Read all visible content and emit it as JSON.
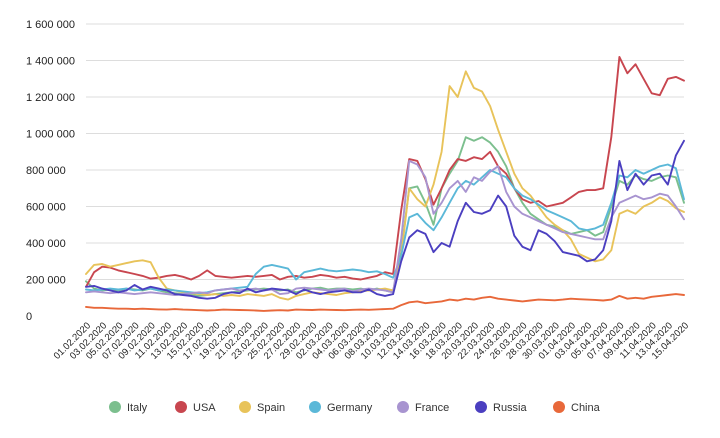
{
  "chart_data": {
    "type": "line",
    "title": "",
    "xlabel": "",
    "ylabel": "",
    "ylim": [
      0,
      1600000
    ],
    "yticks": [
      0,
      200000,
      400000,
      600000,
      800000,
      1000000,
      1200000,
      1400000,
      1600000
    ],
    "ytick_labels": [
      "0",
      "200 000",
      "400 000",
      "600 000",
      "800 000",
      "1 000 000",
      "1 200 000",
      "1 400 000",
      "1 600 000"
    ],
    "grid": true,
    "legend_position": "bottom",
    "x_tick_labels": [
      "01.02.2020",
      "03.02.2020",
      "05.02.2020",
      "07.02.2020",
      "09.02.2020",
      "11.02.2020",
      "13.02.2020",
      "15.02.2020",
      "17.02.2020",
      "19.02.2020",
      "21.02.2020",
      "23.02.2020",
      "25.02.2020",
      "27.02.2020",
      "29.02.2020",
      "02.03.2020",
      "04.03.2020",
      "06.03.2020",
      "08.03.2020",
      "10.03.2020",
      "12.03.2020",
      "14.03.2020",
      "16.03.2020",
      "18.03.2020",
      "20.03.2020",
      "22.03.2020",
      "24.03.2020",
      "26.03.2020",
      "28.03.2020",
      "30.03.2020",
      "01.04.2020",
      "03.04.2020",
      "05.04.2020",
      "07.04.2020",
      "09.04.2020",
      "11.04.2020",
      "13.04.2020",
      "15.04.2020"
    ],
    "x": [
      "01.02.2020",
      "02.02.2020",
      "03.02.2020",
      "04.02.2020",
      "05.02.2020",
      "06.02.2020",
      "07.02.2020",
      "08.02.2020",
      "09.02.2020",
      "10.02.2020",
      "11.02.2020",
      "12.02.2020",
      "13.02.2020",
      "14.02.2020",
      "15.02.2020",
      "16.02.2020",
      "17.02.2020",
      "18.02.2020",
      "19.02.2020",
      "20.02.2020",
      "21.02.2020",
      "22.02.2020",
      "23.02.2020",
      "24.02.2020",
      "25.02.2020",
      "26.02.2020",
      "27.02.2020",
      "28.02.2020",
      "29.02.2020",
      "01.03.2020",
      "02.03.2020",
      "03.03.2020",
      "04.03.2020",
      "05.03.2020",
      "06.03.2020",
      "07.03.2020",
      "08.03.2020",
      "09.03.2020",
      "10.03.2020",
      "11.03.2020",
      "12.03.2020",
      "13.03.2020",
      "14.03.2020",
      "15.03.2020",
      "16.03.2020",
      "17.03.2020",
      "18.03.2020",
      "19.03.2020",
      "20.03.2020",
      "21.03.2020",
      "22.03.2020",
      "23.03.2020",
      "24.03.2020",
      "25.03.2020",
      "26.03.2020",
      "27.03.2020",
      "28.03.2020",
      "29.03.2020",
      "30.03.2020",
      "31.03.2020",
      "01.04.2020",
      "02.04.2020",
      "03.04.2020",
      "04.04.2020",
      "05.04.2020",
      "06.04.2020",
      "07.04.2020",
      "08.04.2020",
      "09.04.2020",
      "10.04.2020",
      "11.04.2020",
      "12.04.2020",
      "13.04.2020",
      "14.04.2020",
      "15.04.2020"
    ],
    "series": [
      {
        "name": "Italy",
        "color": "#7cbf8e",
        "values": [
          190000,
          150000,
          140000,
          145000,
          140000,
          150000,
          145000,
          140000,
          150000,
          140000,
          130000,
          125000,
          120000,
          115000,
          110000,
          115000,
          120000,
          125000,
          130000,
          135000,
          140000,
          145000,
          150000,
          145000,
          140000,
          145000,
          130000,
          140000,
          150000,
          155000,
          145000,
          150000,
          150000,
          145000,
          150000,
          140000,
          150000,
          140000,
          130000,
          350000,
          700000,
          710000,
          620000,
          500000,
          700000,
          780000,
          850000,
          980000,
          960000,
          980000,
          950000,
          900000,
          820000,
          700000,
          620000,
          560000,
          530000,
          500000,
          490000,
          470000,
          450000,
          460000,
          470000,
          440000,
          460000,
          600000,
          740000,
          720000,
          770000,
          750000,
          740000,
          760000,
          770000,
          760000,
          620000
        ]
      },
      {
        "name": "USA",
        "color": "#c8464f",
        "values": [
          160000,
          240000,
          270000,
          265000,
          250000,
          240000,
          230000,
          220000,
          205000,
          210000,
          220000,
          225000,
          215000,
          200000,
          220000,
          250000,
          220000,
          215000,
          210000,
          215000,
          220000,
          215000,
          220000,
          225000,
          200000,
          215000,
          220000,
          210000,
          215000,
          225000,
          220000,
          210000,
          215000,
          205000,
          200000,
          210000,
          220000,
          240000,
          230000,
          580000,
          860000,
          850000,
          750000,
          610000,
          700000,
          800000,
          860000,
          850000,
          870000,
          860000,
          900000,
          820000,
          780000,
          700000,
          640000,
          620000,
          630000,
          600000,
          610000,
          620000,
          650000,
          680000,
          690000,
          690000,
          700000,
          980000,
          1420000,
          1330000,
          1380000,
          1300000,
          1220000,
          1210000,
          1300000,
          1310000,
          1290000
        ]
      },
      {
        "name": "Spain",
        "color": "#e8c35a",
        "values": [
          230000,
          280000,
          285000,
          270000,
          280000,
          290000,
          300000,
          305000,
          295000,
          210000,
          150000,
          140000,
          130000,
          125000,
          120000,
          115000,
          120000,
          110000,
          115000,
          110000,
          120000,
          115000,
          110000,
          120000,
          100000,
          90000,
          110000,
          120000,
          130000,
          125000,
          120000,
          115000,
          125000,
          130000,
          135000,
          140000,
          145000,
          150000,
          140000,
          330000,
          700000,
          640000,
          600000,
          720000,
          900000,
          1260000,
          1200000,
          1340000,
          1250000,
          1230000,
          1150000,
          1020000,
          900000,
          780000,
          700000,
          660000,
          600000,
          540000,
          500000,
          470000,
          420000,
          340000,
          320000,
          300000,
          310000,
          360000,
          560000,
          580000,
          560000,
          600000,
          620000,
          650000,
          630000,
          590000,
          570000
        ]
      },
      {
        "name": "Germany",
        "color": "#5bb8d8",
        "values": [
          145000,
          140000,
          145000,
          150000,
          145000,
          150000,
          140000,
          145000,
          150000,
          140000,
          145000,
          140000,
          135000,
          130000,
          125000,
          130000,
          140000,
          145000,
          150000,
          155000,
          160000,
          230000,
          270000,
          280000,
          270000,
          260000,
          200000,
          240000,
          250000,
          260000,
          250000,
          245000,
          250000,
          255000,
          250000,
          240000,
          245000,
          230000,
          210000,
          330000,
          540000,
          560000,
          510000,
          470000,
          540000,
          620000,
          700000,
          740000,
          720000,
          760000,
          800000,
          780000,
          760000,
          700000,
          660000,
          640000,
          610000,
          580000,
          560000,
          540000,
          520000,
          480000,
          470000,
          480000,
          500000,
          620000,
          770000,
          760000,
          800000,
          780000,
          800000,
          820000,
          830000,
          810000,
          640000
        ]
      },
      {
        "name": "France",
        "color": "#a894d0",
        "values": [
          130000,
          135000,
          130000,
          125000,
          130000,
          125000,
          120000,
          125000,
          130000,
          125000,
          120000,
          115000,
          120000,
          125000,
          130000,
          125000,
          140000,
          145000,
          150000,
          140000,
          145000,
          150000,
          140000,
          145000,
          120000,
          125000,
          150000,
          155000,
          150000,
          145000,
          140000,
          145000,
          150000,
          135000,
          145000,
          150000,
          145000,
          140000,
          130000,
          420000,
          850000,
          830000,
          760000,
          560000,
          620000,
          700000,
          740000,
          680000,
          760000,
          740000,
          790000,
          820000,
          680000,
          600000,
          560000,
          540000,
          520000,
          500000,
          480000,
          460000,
          450000,
          440000,
          430000,
          420000,
          420000,
          540000,
          620000,
          640000,
          660000,
          640000,
          650000,
          670000,
          660000,
          600000,
          530000
        ]
      },
      {
        "name": "Russia",
        "color": "#4b3fc0",
        "values": [
          160000,
          165000,
          150000,
          140000,
          130000,
          140000,
          170000,
          145000,
          160000,
          150000,
          140000,
          120000,
          115000,
          110000,
          100000,
          95000,
          100000,
          120000,
          130000,
          125000,
          150000,
          130000,
          140000,
          150000,
          145000,
          140000,
          120000,
          145000,
          130000,
          120000,
          130000,
          135000,
          140000,
          130000,
          130000,
          145000,
          120000,
          110000,
          120000,
          300000,
          430000,
          470000,
          450000,
          350000,
          400000,
          380000,
          520000,
          620000,
          570000,
          560000,
          580000,
          660000,
          600000,
          440000,
          380000,
          360000,
          470000,
          450000,
          410000,
          350000,
          340000,
          330000,
          300000,
          310000,
          360000,
          520000,
          850000,
          690000,
          780000,
          720000,
          770000,
          780000,
          720000,
          880000,
          960000
        ]
      },
      {
        "name": "China",
        "color": "#e8683a",
        "values": [
          50000,
          45000,
          45000,
          42000,
          40000,
          40000,
          38000,
          40000,
          38000,
          36000,
          35000,
          38000,
          35000,
          34000,
          32000,
          30000,
          32000,
          35000,
          34000,
          33000,
          32000,
          30000,
          28000,
          30000,
          32000,
          30000,
          35000,
          34000,
          33000,
          35000,
          34000,
          33000,
          32000,
          34000,
          35000,
          34000,
          36000,
          38000,
          40000,
          60000,
          75000,
          80000,
          70000,
          75000,
          80000,
          90000,
          85000,
          95000,
          90000,
          100000,
          105000,
          95000,
          90000,
          85000,
          80000,
          85000,
          90000,
          88000,
          86000,
          90000,
          95000,
          92000,
          90000,
          88000,
          85000,
          90000,
          110000,
          95000,
          100000,
          95000,
          105000,
          110000,
          115000,
          120000,
          115000
        ]
      }
    ]
  }
}
